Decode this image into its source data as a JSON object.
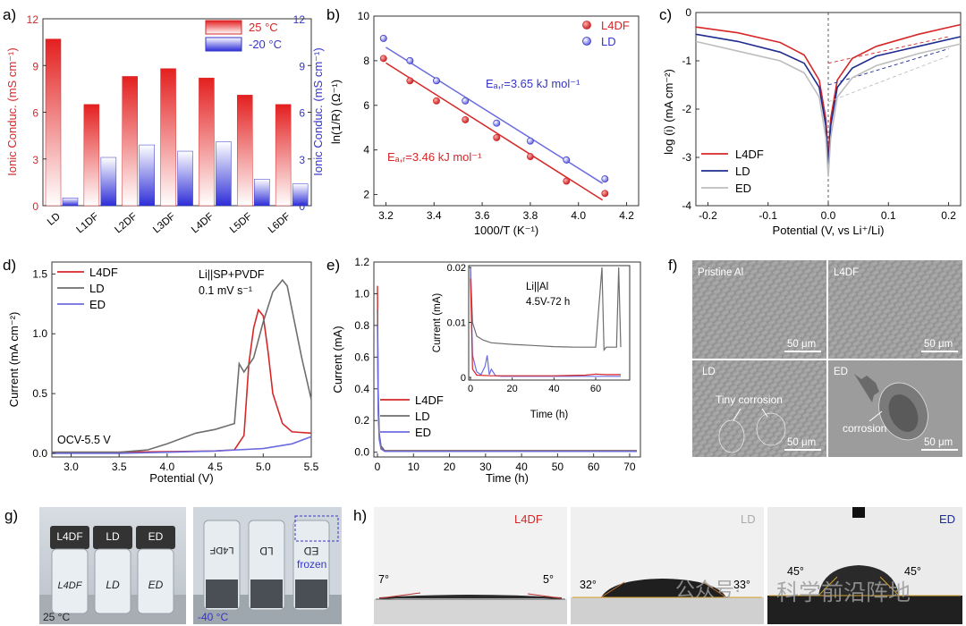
{
  "figure": {
    "colors": {
      "red": "#d62728",
      "blue": "#3535c8",
      "gray": "#6e6e6e",
      "light_gray": "#bdbdbd",
      "dark_blue": "#1f2c8f",
      "fit_blue": "#6b6be0"
    }
  },
  "chart_data": [
    {
      "panel": "a)",
      "type": "bar",
      "categories": [
        "LD",
        "L1DF",
        "L2DF",
        "L3DF",
        "L4DF",
        "L5DF",
        "L6DF"
      ],
      "series": [
        {
          "name": "25 °C",
          "values": [
            10.7,
            6.5,
            8.3,
            8.8,
            8.2,
            7.1,
            6.5
          ]
        },
        {
          "name": "-20 °C",
          "values": [
            0.5,
            3.1,
            3.9,
            3.5,
            4.1,
            1.7,
            1.4
          ]
        }
      ],
      "ylabel": "Ionic Conduc. (mS cm⁻¹)",
      "y2label": "Ionic Conduc. (mS cm⁻¹)",
      "ylim": [
        0,
        12
      ],
      "yticks": [
        "0",
        "3",
        "6",
        "9",
        "12"
      ],
      "legend_position": "top-right"
    },
    {
      "panel": "b)",
      "type": "scatter",
      "x": [
        3.19,
        3.3,
        3.41,
        3.53,
        3.66,
        3.8,
        3.95,
        4.11
      ],
      "series": [
        {
          "name": "L4DF",
          "values": [
            8.1,
            7.1,
            6.2,
            5.35,
            4.55,
            3.7,
            2.6,
            2.05
          ],
          "fit": [
            [
              3.2,
              7.9
            ],
            [
              4.1,
              1.75
            ]
          ],
          "annotation": "Eₐ,ᵣ=3.46 kJ mol⁻¹"
        },
        {
          "name": "LD",
          "values": [
            9.0,
            8.0,
            7.1,
            6.2,
            5.2,
            4.4,
            3.55,
            2.7
          ],
          "fit": [
            [
              3.2,
              8.6
            ],
            [
              4.1,
              2.5
            ]
          ],
          "annotation": "Eₐ,ᵣ=3.65 kJ mol⁻¹"
        }
      ],
      "xlabel": "1000/T (K⁻¹)",
      "ylabel": "ln(1/R) (Ω⁻¹)",
      "xlim": [
        3.15,
        4.25
      ],
      "ylim": [
        1.5,
        10
      ],
      "xticks": [
        "3.2",
        "3.4",
        "3.6",
        "3.8",
        "4.0",
        "4.2"
      ],
      "yticks": [
        "2",
        "4",
        "6",
        "8",
        "10"
      ],
      "legend_position": "top-right"
    },
    {
      "panel": "c)",
      "type": "line",
      "series": [
        {
          "name": "L4DF",
          "x": [
            -0.22,
            -0.15,
            -0.08,
            -0.04,
            -0.015,
            -0.004,
            0.0,
            0.004,
            0.015,
            0.04,
            0.08,
            0.15,
            0.22
          ],
          "values": [
            -0.3,
            -0.42,
            -0.62,
            -0.88,
            -1.4,
            -2.2,
            -3.0,
            -2.2,
            -1.4,
            -0.95,
            -0.7,
            -0.45,
            -0.25
          ]
        },
        {
          "name": "LD",
          "x": [
            -0.22,
            -0.15,
            -0.08,
            -0.04,
            -0.015,
            -0.004,
            0.0,
            0.004,
            0.015,
            0.04,
            0.08,
            0.15,
            0.22
          ],
          "values": [
            -0.45,
            -0.6,
            -0.82,
            -1.05,
            -1.55,
            -2.35,
            -3.2,
            -2.35,
            -1.55,
            -1.15,
            -0.9,
            -0.7,
            -0.5
          ]
        },
        {
          "name": "ED",
          "x": [
            -0.22,
            -0.15,
            -0.08,
            -0.04,
            -0.015,
            -0.004,
            0.0,
            0.004,
            0.015,
            0.04,
            0.08,
            0.15,
            0.22
          ],
          "values": [
            -0.6,
            -0.8,
            -1.0,
            -1.25,
            -1.75,
            -2.6,
            -3.4,
            -2.6,
            -1.75,
            -1.35,
            -1.1,
            -0.85,
            -0.65
          ]
        }
      ],
      "xlabel": "Potential (V, vs Li⁺/Li)",
      "ylabel": "log (i) (mA cm⁻²)",
      "xlim": [
        -0.22,
        0.22
      ],
      "ylim": [
        -4,
        0
      ],
      "xticks": [
        "-0.2",
        "-0.1",
        "0.0",
        "0.1",
        "0.2"
      ],
      "yticks": [
        "0",
        "-1",
        "-2",
        "-3",
        "-4"
      ],
      "legend_position": "bottom-left"
    },
    {
      "panel": "d)",
      "type": "line",
      "series": [
        {
          "name": "L4DF",
          "x": [
            2.8,
            3.5,
            4.0,
            4.5,
            4.7,
            4.8,
            4.85,
            4.9,
            4.95,
            5.0,
            5.05,
            5.1,
            5.2,
            5.3,
            5.5
          ],
          "values": [
            0.01,
            0.01,
            0.015,
            0.02,
            0.03,
            0.15,
            0.75,
            1.05,
            1.2,
            1.15,
            0.85,
            0.5,
            0.25,
            0.18,
            0.17
          ]
        },
        {
          "name": "LD",
          "x": [
            2.8,
            3.5,
            3.8,
            4.0,
            4.3,
            4.5,
            4.7,
            4.75,
            4.8,
            4.9,
            5.0,
            5.1,
            5.2,
            5.25,
            5.3,
            5.4,
            5.5
          ],
          "values": [
            0.01,
            0.01,
            0.03,
            0.08,
            0.17,
            0.2,
            0.25,
            0.75,
            0.68,
            0.8,
            1.1,
            1.35,
            1.45,
            1.4,
            1.2,
            0.8,
            0.45
          ]
        },
        {
          "name": "ED",
          "x": [
            2.8,
            3.5,
            4.0,
            4.5,
            5.0,
            5.3,
            5.5
          ],
          "values": [
            0.0,
            0.0,
            0.01,
            0.02,
            0.04,
            0.08,
            0.14
          ]
        }
      ],
      "annotations": [
        "Li||SP+PVDF",
        "0.1 mV s⁻¹",
        "OCV-5.5 V"
      ],
      "xlabel": "Potential (V)",
      "ylabel": "Current (mA cm⁻²)",
      "xlim": [
        2.8,
        5.5
      ],
      "ylim": [
        -0.03,
        1.6
      ],
      "xticks": [
        "3.0",
        "3.5",
        "4.0",
        "4.5",
        "5.0",
        "5.5"
      ],
      "yticks": [
        "0.0",
        "0.5",
        "1.0",
        "1.5"
      ],
      "legend_position": "top-left"
    },
    {
      "panel": "e)",
      "type": "line",
      "series": [
        {
          "name": "L4DF",
          "x": [
            0,
            0.2,
            0.5,
            1,
            2,
            72
          ],
          "values": [
            1.05,
            0.3,
            0.1,
            0.03,
            0.01,
            0.01
          ]
        },
        {
          "name": "LD",
          "x": [
            0,
            0.2,
            0.5,
            1,
            2,
            72
          ],
          "values": [
            0.9,
            0.4,
            0.12,
            0.04,
            0.01,
            0.01
          ]
        },
        {
          "name": "ED",
          "x": [
            0,
            0.2,
            0.5,
            1,
            2,
            72
          ],
          "values": [
            0.8,
            0.25,
            0.08,
            0.02,
            0.005,
            0.005
          ]
        }
      ],
      "inset": {
        "annotations": [
          "Li||Al",
          "4.5V-72 h"
        ],
        "xlabel": "Time (h)",
        "ylabel": "Current (mA)",
        "xlim": [
          0,
          72
        ],
        "ylim": [
          0,
          0.02
        ],
        "xticks": [
          "0",
          "20",
          "40",
          "60"
        ],
        "yticks": [
          "0",
          "0.01",
          "0.02"
        ],
        "series": [
          {
            "name": "LD",
            "x": [
              0,
              1,
              3,
              6,
              10,
              20,
              30,
              40,
              50,
              60,
              63,
              64,
              65,
              70,
              71,
              72
            ],
            "values": [
              0.02,
              0.01,
              0.0075,
              0.0068,
              0.0063,
              0.006,
              0.0058,
              0.0056,
              0.0055,
              0.0055,
              0.02,
              0.005,
              0.0055,
              0.0055,
              0.02,
              0.0055
            ]
          },
          {
            "name": "ED",
            "x": [
              0,
              1,
              3,
              5,
              7,
              8,
              9,
              10,
              12,
              15,
              20,
              72
            ],
            "values": [
              0.02,
              0.004,
              0.001,
              0.0005,
              0.002,
              0.004,
              0.0005,
              0.0015,
              0.0003,
              0.0002,
              0.0002,
              0.0002
            ]
          },
          {
            "name": "L4DF",
            "x": [
              0,
              1,
              3,
              10,
              40,
              55,
              60,
              65,
              72
            ],
            "values": [
              0.018,
              0.0015,
              0.0004,
              0.0003,
              0.0003,
              0.0004,
              0.0006,
              0.0005,
              0.0005
            ]
          }
        ]
      },
      "xlabel": "Time (h)",
      "ylabel": "Current (mA)",
      "xlim": [
        0,
        72
      ],
      "ylim": [
        -0.03,
        1.2
      ],
      "xticks": [
        "0",
        "10",
        "20",
        "30",
        "40",
        "50",
        "60",
        "70"
      ],
      "yticks": [
        "0.0",
        "0.2",
        "0.4",
        "0.6",
        "0.8",
        "1.0",
        "1.2"
      ],
      "legend_position": "bottom-left"
    }
  ],
  "panels": {
    "f": {
      "label": "f)",
      "images": [
        {
          "caption": "Pristine Al",
          "scale": "50 μm"
        },
        {
          "caption": "L4DF",
          "scale": "50 μm"
        },
        {
          "caption": "LD",
          "scale": "50 μm",
          "note": "Tiny corrosion"
        },
        {
          "caption": "ED",
          "scale": "50 μm",
          "note": "corrosion"
        }
      ]
    },
    "g": {
      "label": "g)",
      "photos": [
        {
          "temp": "25 °C",
          "vials": [
            "L4DF",
            "LD",
            "ED"
          ],
          "handwritten": [
            "L4DF",
            "LD",
            "ED"
          ]
        },
        {
          "temp": "-40 °C",
          "note": "frozen",
          "handwritten": [
            "L4DF",
            "LD",
            "ED"
          ]
        }
      ]
    },
    "h": {
      "label": "h)",
      "photos": [
        {
          "name": "L4DF",
          "left_angle": "7°",
          "right_angle": "5°"
        },
        {
          "name": "LD",
          "left_angle": "32°",
          "right_angle": "33°"
        },
        {
          "name": "ED",
          "left_angle": "45°",
          "right_angle": "45°"
        }
      ],
      "watermark": [
        "公众号·",
        "科学前沿阵地"
      ]
    }
  }
}
